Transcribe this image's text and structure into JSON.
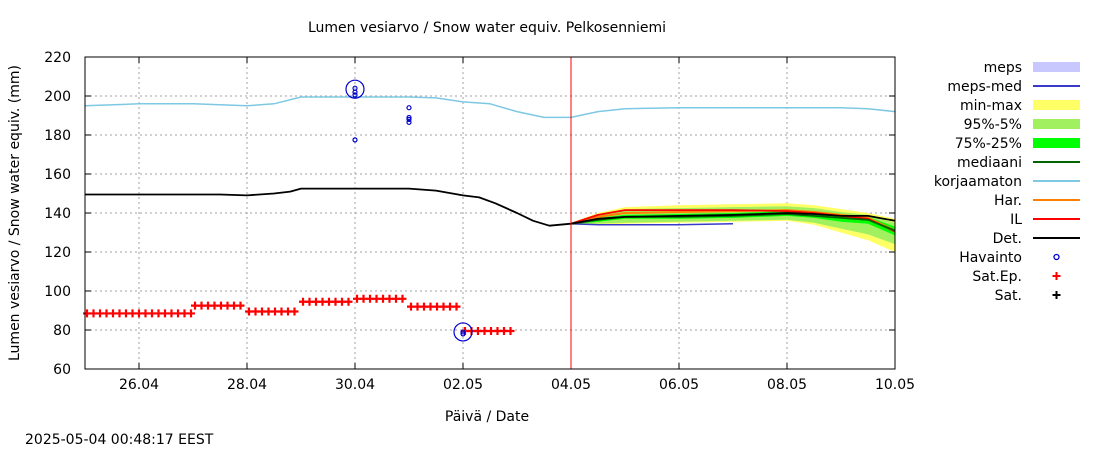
{
  "chart_data": {
    "type": "line",
    "title": "Lumen vesiarvo / Snow water equiv.  Pelkosenniemi",
    "xlabel": "Päivä / Date",
    "ylabel": "Lumen vesiarvo / Snow water equiv. (mm)",
    "timestamp": "2025-05-04 00:48:17 EEST",
    "xlim": [
      0,
      15
    ],
    "ylim": [
      60,
      220
    ],
    "grid": true,
    "legend_position": "right",
    "x_ticks": [
      {
        "x": 1,
        "label": "26.04"
      },
      {
        "x": 3,
        "label": "28.04"
      },
      {
        "x": 5,
        "label": "30.04"
      },
      {
        "x": 7,
        "label": "02.05"
      },
      {
        "x": 9,
        "label": "04.05"
      },
      {
        "x": 11,
        "label": "06.05"
      },
      {
        "x": 13,
        "label": "08.05"
      },
      {
        "x": 15,
        "label": "10.05"
      }
    ],
    "y_ticks": [
      60,
      80,
      100,
      120,
      140,
      160,
      180,
      200,
      220
    ],
    "current_time_x": 9.0,
    "legend": [
      {
        "label": "meps",
        "color": "#c8c8ff",
        "style": "band"
      },
      {
        "label": "meps-med",
        "color": "#3a3ac8",
        "style": "line"
      },
      {
        "label": "min-max",
        "color": "#ffff66",
        "style": "band"
      },
      {
        "label": "95%-5%",
        "color": "#a0f060",
        "style": "band"
      },
      {
        "label": "75%-25%",
        "color": "#00ff00",
        "style": "band"
      },
      {
        "label": "mediaani",
        "color": "#006400",
        "style": "line"
      },
      {
        "label": "korjaamaton",
        "color": "#7ec8e3",
        "style": "line"
      },
      {
        "label": "Har.",
        "color": "#ff8000",
        "style": "line"
      },
      {
        "label": "IL",
        "color": "#ff0000",
        "style": "line"
      },
      {
        "label": "Det.",
        "color": "#000000",
        "style": "line"
      },
      {
        "label": "Havainto",
        "color": "#0000cc",
        "style": "circle"
      },
      {
        "label": "Sat.Ep.",
        "color": "#ff0000",
        "style": "plus"
      },
      {
        "label": "Sat.",
        "color": "#000000",
        "style": "plus"
      }
    ],
    "series": {
      "korjaamaton": {
        "color": "#7ec8e3",
        "points": [
          [
            0,
            195
          ],
          [
            1,
            196
          ],
          [
            2,
            196
          ],
          [
            3,
            195
          ],
          [
            3.5,
            196
          ],
          [
            4,
            199.5
          ],
          [
            5,
            199.5
          ],
          [
            6,
            199.5
          ],
          [
            6.5,
            199
          ],
          [
            7,
            197
          ],
          [
            7.5,
            196
          ],
          [
            8,
            192
          ],
          [
            8.5,
            189
          ],
          [
            9,
            189
          ],
          [
            9.5,
            192
          ],
          [
            10,
            193.5
          ],
          [
            11,
            194
          ],
          [
            12,
            194
          ],
          [
            13,
            194
          ],
          [
            14,
            194
          ],
          [
            14.5,
            193.5
          ],
          [
            15,
            192
          ]
        ]
      },
      "Det": {
        "color": "#000000",
        "points": [
          [
            0,
            149.5
          ],
          [
            2,
            149.5
          ],
          [
            2.5,
            149.5
          ],
          [
            3,
            149
          ],
          [
            3.5,
            150
          ],
          [
            3.8,
            151
          ],
          [
            4,
            152.5
          ],
          [
            5,
            152.5
          ],
          [
            6,
            152.5
          ],
          [
            6.5,
            151.5
          ],
          [
            7,
            149
          ],
          [
            7.3,
            148
          ],
          [
            7.6,
            145
          ],
          [
            8,
            140
          ],
          [
            8.3,
            136
          ],
          [
            8.6,
            133.5
          ],
          [
            9,
            134.5
          ],
          [
            9.5,
            137
          ],
          [
            10,
            138
          ],
          [
            11,
            138.5
          ],
          [
            12,
            139
          ],
          [
            13,
            140
          ],
          [
            13.5,
            139.5
          ],
          [
            14,
            138.5
          ],
          [
            14.5,
            138.5
          ],
          [
            15,
            136
          ]
        ]
      },
      "mediaani": {
        "color": "#006400",
        "points": [
          [
            9,
            134.5
          ],
          [
            9.5,
            136.5
          ],
          [
            10,
            138
          ],
          [
            11,
            138
          ],
          [
            12,
            138.5
          ],
          [
            13,
            139.5
          ],
          [
            13.5,
            138.5
          ],
          [
            14,
            137.5
          ],
          [
            14.5,
            136.5
          ],
          [
            15,
            131
          ]
        ]
      },
      "Har": {
        "color": "#ff8000",
        "points": [
          [
            9,
            134.5
          ],
          [
            9.5,
            138
          ],
          [
            10,
            140
          ],
          [
            11,
            140.5
          ],
          [
            12,
            141
          ],
          [
            13,
            141.5
          ],
          [
            13.5,
            140.5
          ],
          [
            14,
            139
          ],
          [
            14.5,
            137.5
          ],
          [
            15,
            131
          ]
        ]
      },
      "IL": {
        "color": "#ff0000",
        "points": [
          [
            9,
            134.5
          ],
          [
            9.5,
            139
          ],
          [
            10,
            141.5
          ],
          [
            11,
            141.5
          ],
          [
            12,
            141.5
          ],
          [
            13,
            141
          ],
          [
            13.5,
            140
          ],
          [
            14,
            138.5
          ],
          [
            14.5,
            137
          ],
          [
            15,
            130.5
          ]
        ]
      },
      "meps-med": {
        "color": "#3a3ac8",
        "points": [
          [
            9,
            134.5
          ],
          [
            9.5,
            134
          ],
          [
            10,
            134
          ],
          [
            11,
            134
          ],
          [
            12,
            134.5
          ]
        ]
      }
    },
    "bands": {
      "min-max": {
        "color": "#ffff66",
        "upper": [
          [
            9,
            135
          ],
          [
            9.5,
            140
          ],
          [
            10,
            143
          ],
          [
            11,
            144
          ],
          [
            12,
            144.5
          ],
          [
            13,
            145
          ],
          [
            13.5,
            144
          ],
          [
            14,
            142
          ],
          [
            14.5,
            140
          ],
          [
            15,
            137
          ]
        ],
        "lower": [
          [
            9,
            134
          ],
          [
            9.5,
            134
          ],
          [
            10,
            134.5
          ],
          [
            11,
            135
          ],
          [
            12,
            135.5
          ],
          [
            13,
            136
          ],
          [
            13.5,
            134
          ],
          [
            14,
            130
          ],
          [
            14.5,
            126
          ],
          [
            15,
            120
          ]
        ]
      },
      "95-5": {
        "color": "#a0f060",
        "upper": [
          [
            9,
            135
          ],
          [
            9.5,
            139
          ],
          [
            10,
            142
          ],
          [
            11,
            142.5
          ],
          [
            12,
            143
          ],
          [
            13,
            143.5
          ],
          [
            13.5,
            142.5
          ],
          [
            14,
            140.5
          ],
          [
            14.5,
            139
          ],
          [
            15,
            135
          ]
        ],
        "lower": [
          [
            9,
            134
          ],
          [
            9.5,
            134.5
          ],
          [
            10,
            135
          ],
          [
            11,
            135.5
          ],
          [
            12,
            136
          ],
          [
            13,
            136.5
          ],
          [
            13.5,
            135
          ],
          [
            14,
            132
          ],
          [
            14.5,
            129
          ],
          [
            15,
            124
          ]
        ]
      },
      "75-25": {
        "color": "#00ff00",
        "upper": [
          [
            9,
            134.8
          ],
          [
            9.5,
            137.5
          ],
          [
            10,
            139
          ],
          [
            11,
            139.5
          ],
          [
            12,
            140
          ],
          [
            13,
            141
          ],
          [
            13.5,
            140
          ],
          [
            14,
            139
          ],
          [
            14.5,
            138
          ],
          [
            15,
            133
          ]
        ],
        "lower": [
          [
            9,
            134.2
          ],
          [
            9.5,
            135.5
          ],
          [
            10,
            137
          ],
          [
            11,
            137
          ],
          [
            12,
            137.5
          ],
          [
            13,
            138.5
          ],
          [
            13.5,
            137.5
          ],
          [
            14,
            135.5
          ],
          [
            14.5,
            134.5
          ],
          [
            15,
            128.5
          ]
        ]
      }
    },
    "sat_ep": {
      "color": "#ff0000",
      "segments": [
        {
          "x0": 0,
          "x1": 2,
          "y": 88.5
        },
        {
          "x0": 2,
          "x1": 3,
          "y": 92.5
        },
        {
          "x0": 3,
          "x1": 4,
          "y": 89.5
        },
        {
          "x0": 4,
          "x1": 5,
          "y": 94.5
        },
        {
          "x0": 5,
          "x1": 6,
          "y": 96
        },
        {
          "x0": 6,
          "x1": 7,
          "y": 92
        },
        {
          "x0": 7,
          "x1": 8,
          "y": 79.5
        }
      ]
    },
    "havainto": {
      "color": "#0000cc",
      "points": [
        [
          5,
          204
        ],
        [
          5,
          202
        ],
        [
          5,
          200.5
        ],
        [
          5,
          177.5
        ],
        [
          6,
          194
        ],
        [
          6,
          189
        ],
        [
          6,
          188
        ],
        [
          6,
          186.5
        ],
        [
          7,
          79
        ],
        [
          7,
          78
        ]
      ]
    }
  }
}
